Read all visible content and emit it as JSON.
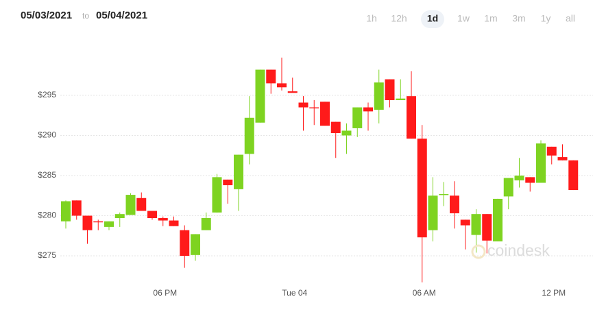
{
  "header": {
    "start": "05/03/2021",
    "sep": "to",
    "end": "05/04/2021"
  },
  "ranges": [
    "1h",
    "12h",
    "1d",
    "1w",
    "1m",
    "3m",
    "1y",
    "all"
  ],
  "selected_range": 2,
  "watermark": "coindesk",
  "chart_data": {
    "type": "candlestick",
    "categories": [
      null,
      null,
      null,
      null,
      null,
      null,
      null,
      null,
      null,
      "06 PM",
      null,
      null,
      null,
      null,
      null,
      null,
      null,
      null,
      null,
      null,
      null,
      "Tue 04",
      null,
      null,
      null,
      null,
      null,
      null,
      null,
      null,
      null,
      null,
      null,
      "06 AM",
      null,
      null,
      null,
      null,
      null,
      null,
      null,
      null,
      null,
      null,
      null,
      "12 PM",
      null,
      null
    ],
    "open": [
      279.3,
      281.9,
      280.0,
      279.3,
      278.6,
      279.7,
      280.1,
      282.2,
      280.6,
      279.7,
      279.4,
      278.2,
      275.1,
      278.2,
      280.4,
      284.5,
      283.3,
      287.7,
      291.6,
      298.2,
      296.5,
      295.5,
      294.1,
      293.5,
      294.2,
      291.7,
      290.0,
      290.9,
      293.5,
      293.2,
      297.0,
      294.4,
      294.9,
      289.6,
      278.2,
      282.7,
      282.5,
      279.5,
      277.6,
      280.2,
      276.8,
      282.4,
      284.4,
      284.8,
      284.1,
      288.6,
      287.3,
      286.9
    ],
    "high": [
      281.9,
      281.9,
      280.0,
      279.5,
      279.3,
      280.4,
      282.8,
      282.9,
      280.6,
      279.9,
      279.9,
      278.8,
      277.7,
      280.4,
      285.2,
      284.5,
      287.6,
      294.9,
      298.2,
      298.2,
      299.7,
      297.2,
      294.9,
      294.4,
      294.2,
      291.7,
      291.5,
      293.5,
      294.1,
      298.2,
      297.0,
      297.0,
      298.0,
      291.3,
      284.8,
      284.2,
      284.3,
      279.5,
      280.8,
      280.2,
      282.1,
      284.7,
      287.2,
      284.8,
      289.4,
      288.6,
      288.9,
      286.9
    ],
    "low": [
      278.4,
      279.5,
      276.5,
      278.2,
      278.2,
      278.6,
      280.1,
      280.6,
      279.5,
      278.7,
      278.7,
      273.5,
      274.4,
      278.2,
      280.4,
      281.5,
      280.6,
      286.4,
      291.6,
      295.2,
      295.6,
      295.3,
      290.6,
      291.3,
      291.2,
      287.2,
      287.7,
      289.8,
      290.6,
      291.5,
      293.5,
      294.4,
      289.6,
      271.7,
      276.8,
      281.2,
      278.4,
      275.8,
      275.4,
      275.3,
      276.8,
      280.8,
      283.5,
      283.0,
      284.1,
      286.4,
      286.9,
      283.2
    ],
    "close": [
      281.8,
      280.0,
      278.2,
      279.2,
      279.3,
      280.2,
      282.6,
      280.6,
      279.7,
      279.4,
      278.7,
      275.0,
      277.7,
      279.7,
      284.8,
      283.8,
      287.6,
      292.2,
      298.2,
      296.5,
      296.0,
      295.3,
      293.5,
      293.4,
      291.2,
      290.3,
      290.6,
      293.5,
      293.0,
      296.6,
      294.4,
      294.6,
      289.6,
      277.3,
      282.5,
      282.7,
      280.3,
      278.8,
      280.2,
      276.9,
      282.1,
      284.7,
      285.0,
      284.1,
      289.0,
      287.5,
      286.9,
      283.2
    ],
    "up_color": "#7ed321",
    "down_color": "#ff1a1a",
    "ylim": [
      271,
      302
    ],
    "yticks": [
      {
        "value": 275,
        "label": "$275"
      },
      {
        "value": 280,
        "label": "$280"
      },
      {
        "value": 285,
        "label": "$285"
      },
      {
        "value": 290,
        "label": "$290"
      },
      {
        "value": 295,
        "label": "$295"
      }
    ],
    "grid": true
  }
}
